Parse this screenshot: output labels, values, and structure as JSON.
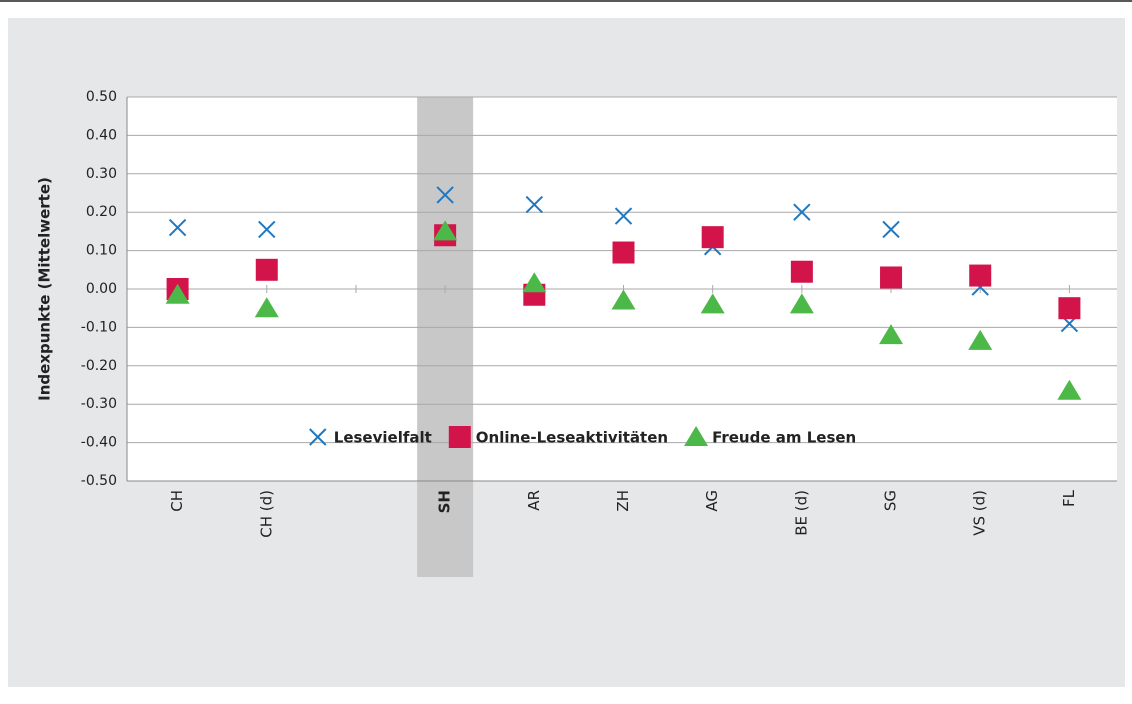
{
  "chart_data": {
    "type": "scatter",
    "ylabel": "Indexpunkte (Mittelwerte)",
    "categories": [
      "CH",
      "CH (d)",
      null,
      "SH",
      "AR",
      "ZH",
      "AG",
      "BE (d)",
      "SG",
      "VS (d)",
      "FL"
    ],
    "highlight": "SH",
    "series": [
      {
        "name": "Lesevielfalt",
        "color": "#1f78c1",
        "marker": "x",
        "values": [
          0.16,
          0.155,
          null,
          0.245,
          0.22,
          0.19,
          0.11,
          0.2,
          0.155,
          0.005,
          -0.09
        ]
      },
      {
        "name": "Online-Leseaktivitäten",
        "color": "#d2144a",
        "marker": "square",
        "values": [
          0.0,
          0.05,
          null,
          0.14,
          -0.015,
          0.095,
          0.135,
          0.045,
          0.03,
          0.035,
          -0.05
        ]
      },
      {
        "name": "Freude am Lesen",
        "color": "#4cb848",
        "marker": "triangle",
        "values": [
          -0.015,
          -0.05,
          null,
          0.15,
          0.015,
          -0.03,
          -0.04,
          -0.04,
          -0.12,
          -0.135,
          -0.265
        ]
      }
    ],
    "ylim": [
      -0.5,
      0.5
    ],
    "yticks": [
      {
        "value": -0.5,
        "label": "-0.50"
      },
      {
        "value": -0.4,
        "label": "-0.40"
      },
      {
        "value": -0.3,
        "label": "-0.30"
      },
      {
        "value": -0.2,
        "label": "-0.20"
      },
      {
        "value": -0.1,
        "label": "-0.10"
      },
      {
        "value": 0,
        "label": "0.00"
      },
      {
        "value": 0.1,
        "label": "0.10"
      },
      {
        "value": 0.2,
        "label": "0.20"
      },
      {
        "value": 0.3,
        "label": "0.30"
      },
      {
        "value": 0.4,
        "label": "0.40"
      },
      {
        "value": 0.5,
        "label": "0.50"
      }
    ],
    "grid": true,
    "legend": "bottom"
  }
}
